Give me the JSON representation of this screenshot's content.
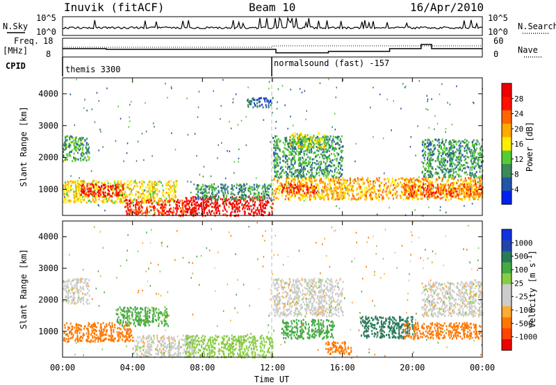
{
  "header": {
    "station": "Inuvik (fitACF)",
    "beam": "Beam 10",
    "date": "16/Apr/2010"
  },
  "panel_labels": {
    "nsky": "N.Sky",
    "nsearch": "N.Search",
    "freq": "Freq.",
    "freq_unit": "[MHz]",
    "nave": "Nave",
    "cpid": "CPID"
  },
  "small_ticks": {
    "nsky_top": "10^5",
    "nsky_bottom": "10^0",
    "nsearch_top": "10^5",
    "nsearch_bottom": "10^0",
    "freq_top": "18",
    "freq_bottom": "8",
    "nave_top": "60",
    "nave_bottom": "0"
  },
  "cpid_segments": [
    {
      "label": "themis 3300",
      "start_hour": 0
    },
    {
      "label": "normalsound (fast) -157",
      "start_hour": 12
    }
  ],
  "colors": {
    "power_scale": [
      "#0022ee",
      "#2255aa",
      "#3a8a5a",
      "#55cc33",
      "#ffee00",
      "#ffaa00",
      "#ff6600",
      "#ff1100",
      "#ee0000"
    ],
    "velocity_scale": [
      "#ee0000",
      "#ff4400",
      "#ff7700",
      "#ffaa33",
      "#cccccc",
      "#cccccc",
      "#88cc44",
      "#44aa44",
      "#2a7a5a",
      "#2244aa",
      "#1133dd"
    ]
  },
  "chart_data": [
    {
      "type": "heatmap",
      "name_panel": "power",
      "ylabel": "Slant Range [km]",
      "x_range_hours": [
        0,
        24
      ],
      "ylim": [
        180,
        4500
      ],
      "y_ticks": [
        "1000",
        "2000",
        "3000",
        "4000"
      ],
      "x_ticks": [
        "00:00",
        "04:00",
        "08:00",
        "12:00",
        "16:00",
        "20:00",
        "00:00"
      ],
      "colorbar": {
        "label": "Power [dB]",
        "ticks": [
          "4",
          "8",
          "12",
          "16",
          "20",
          "24",
          "28"
        ],
        "range": [
          0,
          30
        ]
      },
      "grid": false,
      "regions": [
        {
          "t0": 0.0,
          "t1": 1.5,
          "r0": 1900,
          "r1": 2700,
          "value": 10
        },
        {
          "t0": 0.0,
          "t1": 6.5,
          "r0": 600,
          "r1": 1300,
          "value": 16
        },
        {
          "t0": 1.0,
          "t1": 3.5,
          "r0": 800,
          "r1": 1200,
          "value": 26
        },
        {
          "t0": 3.5,
          "t1": 7.5,
          "r0": 200,
          "r1": 700,
          "value": 24
        },
        {
          "t0": 7.0,
          "t1": 12.0,
          "r0": 200,
          "r1": 800,
          "value": 27
        },
        {
          "t0": 7.5,
          "t1": 12.0,
          "r0": 700,
          "r1": 1200,
          "value": 9
        },
        {
          "t0": 10.5,
          "t1": 12.0,
          "r0": 3600,
          "r1": 3900,
          "value": 6
        },
        {
          "t0": 12.0,
          "t1": 24.0,
          "r0": 700,
          "r1": 1400,
          "value": 18
        },
        {
          "t0": 12.5,
          "t1": 14.5,
          "r0": 900,
          "r1": 1200,
          "value": 25
        },
        {
          "t0": 12.0,
          "t1": 16.0,
          "r0": 1400,
          "r1": 2700,
          "value": 9
        },
        {
          "t0": 13.0,
          "t1": 15.0,
          "r0": 2300,
          "r1": 2800,
          "value": 14
        },
        {
          "t0": 19.5,
          "t1": 24.0,
          "r0": 800,
          "r1": 1200,
          "value": 22
        },
        {
          "t0": 20.5,
          "t1": 24.0,
          "r0": 1400,
          "r1": 2600,
          "value": 9
        }
      ]
    },
    {
      "type": "heatmap",
      "name_panel": "velocity",
      "ylabel": "Slant Range [km]",
      "xlabel": "Time UT",
      "x_range_hours": [
        0,
        24
      ],
      "ylim": [
        180,
        4500
      ],
      "y_ticks": [
        "1000",
        "2000",
        "3000",
        "4000"
      ],
      "x_ticks": [
        "00:00",
        "04:00",
        "08:00",
        "12:00",
        "16:00",
        "20:00",
        "00:00"
      ],
      "colorbar": {
        "label": "Velocity [m s^-1]",
        "ticks": [
          "1000",
          "500",
          "100",
          "25",
          "-25",
          "-100",
          "-500",
          "-1000"
        ]
      },
      "grid": false,
      "regions": [
        {
          "t0": 0.0,
          "t1": 1.5,
          "r0": 1900,
          "r1": 2700,
          "value": 0
        },
        {
          "t0": 0.0,
          "t1": 4.0,
          "r0": 700,
          "r1": 1300,
          "value": -200
        },
        {
          "t0": 3.0,
          "t1": 6.0,
          "r0": 1200,
          "r1": 1800,
          "value": 120
        },
        {
          "t0": 4.0,
          "t1": 7.5,
          "r0": 200,
          "r1": 900,
          "value": 0
        },
        {
          "t0": 7.0,
          "t1": 12.0,
          "r0": 200,
          "r1": 900,
          "value": 60
        },
        {
          "t0": 12.0,
          "t1": 16.0,
          "r0": 1500,
          "r1": 2700,
          "value": 0
        },
        {
          "t0": 12.5,
          "t1": 15.5,
          "r0": 800,
          "r1": 1400,
          "value": 150
        },
        {
          "t0": 15.0,
          "t1": 16.5,
          "r0": 300,
          "r1": 700,
          "value": -200
        },
        {
          "t0": 17.0,
          "t1": 20.0,
          "r0": 800,
          "r1": 1500,
          "value": 700
        },
        {
          "t0": 19.5,
          "t1": 24.0,
          "r0": 800,
          "r1": 1300,
          "value": -200
        },
        {
          "t0": 20.5,
          "t1": 24.0,
          "r0": 1500,
          "r1": 2600,
          "value": 0
        }
      ]
    }
  ]
}
